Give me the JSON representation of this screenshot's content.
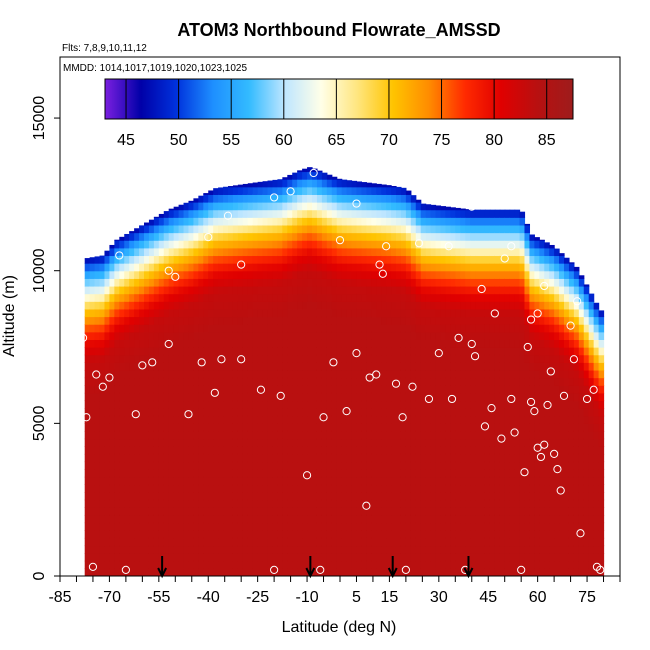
{
  "chart_data": {
    "type": "heatmap",
    "title": "ATOM3 Northbound Flowrate_AMSSD",
    "flights_label": "Flts: 7,8,9,10,11,12",
    "mmdd_label": "MMDD: 1014,1017,1019,1020,1023,1025",
    "xlabel": "Latitude (deg N)",
    "ylabel": "Altitude (m)",
    "xlim": [
      -85,
      85
    ],
    "ylim": [
      0,
      17000
    ],
    "x_ticks": [
      -85,
      -70,
      -55,
      -40,
      -25,
      -10,
      5,
      15,
      30,
      45,
      60,
      75
    ],
    "y_ticks": [
      0,
      5000,
      10000,
      15000
    ],
    "colorbar": {
      "range": [
        43,
        87.5
      ],
      "ticks": [
        45,
        50,
        55,
        60,
        65,
        70,
        75,
        80,
        85
      ],
      "colors": [
        "#7B1FE0",
        "#0000A8",
        "#0033DD",
        "#1E8FFF",
        "#33BBFF",
        "#BFE6FF",
        "#FFFFE8",
        "#FFE680",
        "#FFC400",
        "#FF8C00",
        "#FF2A00",
        "#E00000",
        "#B81010",
        "#9E1C1C"
      ]
    },
    "flight_markers_lat": [
      -54,
      -9,
      16,
      39
    ],
    "columns": [
      {
        "lat": -77.5,
        "top": 10400
      },
      {
        "lat": -72,
        "top": 10500
      },
      {
        "lat": -68,
        "top": 11000
      },
      {
        "lat": -60,
        "top": 11500
      },
      {
        "lat": -52,
        "top": 12000
      },
      {
        "lat": -45,
        "top": 12300
      },
      {
        "lat": -38,
        "top": 12700
      },
      {
        "lat": -25,
        "top": 12900
      },
      {
        "lat": -18,
        "top": 13000
      },
      {
        "lat": -12,
        "top": 13300
      },
      {
        "lat": -9,
        "top": 13400
      },
      {
        "lat": 0,
        "top": 13000
      },
      {
        "lat": 15,
        "top": 12800
      },
      {
        "lat": 20,
        "top": 12700
      },
      {
        "lat": 25,
        "top": 12200
      },
      {
        "lat": 40,
        "top": 12000
      },
      {
        "lat": 55,
        "top": 12000
      },
      {
        "lat": 58,
        "top": 11200
      },
      {
        "lat": 65,
        "top": 10800
      },
      {
        "lat": 72,
        "top": 10100
      },
      {
        "lat": 76,
        "top": 9300
      },
      {
        "lat": 79,
        "top": 8700
      }
    ],
    "top_gradient": [
      {
        "depth": 0,
        "value": 47
      },
      {
        "depth": 600,
        "value": 56
      },
      {
        "depth": 1200,
        "value": 63
      },
      {
        "depth": 1700,
        "value": 70
      },
      {
        "depth": 2200,
        "value": 75
      },
      {
        "depth": 2800,
        "value": 80
      },
      {
        "depth": 3400,
        "value": 83
      },
      {
        "depth": 4500,
        "value": 84
      }
    ],
    "body_value": 84,
    "points": [
      [
        -78,
        7800
      ],
      [
        -77,
        5200
      ],
      [
        -75,
        300
      ],
      [
        -74,
        6600
      ],
      [
        -72,
        6200
      ],
      [
        -70,
        6500
      ],
      [
        -65,
        200
      ],
      [
        -62,
        5300
      ],
      [
        -60,
        6900
      ],
      [
        -57,
        7000
      ],
      [
        -52,
        7600
      ],
      [
        -46,
        5300
      ],
      [
        -42,
        7000
      ],
      [
        -38,
        6000
      ],
      [
        -36,
        7100
      ],
      [
        -30,
        7100
      ],
      [
        -24,
        6100
      ],
      [
        -20,
        200
      ],
      [
        -18,
        5900
      ],
      [
        -10,
        3300
      ],
      [
        -6,
        200
      ],
      [
        -5,
        5200
      ],
      [
        -2,
        7000
      ],
      [
        2,
        5400
      ],
      [
        5,
        7300
      ],
      [
        9,
        6500
      ],
      [
        11,
        6600
      ],
      [
        13,
        9900
      ],
      [
        17,
        6300
      ],
      [
        19,
        5200
      ],
      [
        20,
        200
      ],
      [
        22,
        6200
      ],
      [
        27,
        5800
      ],
      [
        30,
        7300
      ],
      [
        34,
        5800
      ],
      [
        36,
        7800
      ],
      [
        38,
        200
      ],
      [
        40,
        7600
      ],
      [
        41,
        7200
      ],
      [
        44,
        4900
      ],
      [
        46,
        5500
      ],
      [
        47,
        8600
      ],
      [
        49,
        4500
      ],
      [
        52,
        5800
      ],
      [
        53,
        4700
      ],
      [
        55,
        200
      ],
      [
        56,
        3400
      ],
      [
        57,
        7500
      ],
      [
        58,
        5700
      ],
      [
        59,
        5400
      ],
      [
        60,
        4200
      ],
      [
        61,
        3900
      ],
      [
        62,
        4300
      ],
      [
        63,
        5600
      ],
      [
        64,
        6700
      ],
      [
        65,
        4000
      ],
      [
        66,
        3500
      ],
      [
        67,
        2800
      ],
      [
        68,
        5900
      ],
      [
        70,
        8200
      ],
      [
        71,
        7100
      ],
      [
        73,
        1400
      ],
      [
        75,
        5800
      ],
      [
        77,
        6100
      ],
      [
        78,
        300
      ],
      [
        79,
        200
      ],
      [
        8,
        2300
      ],
      [
        -67,
        10500
      ],
      [
        -50,
        9800
      ],
      [
        -52,
        10000
      ],
      [
        -40,
        11100
      ],
      [
        -30,
        10200
      ],
      [
        -20,
        12400
      ],
      [
        -15,
        12600
      ],
      [
        -8,
        13200
      ],
      [
        0,
        11000
      ],
      [
        5,
        12200
      ],
      [
        12,
        10200
      ],
      [
        14,
        10800
      ],
      [
        24,
        10900
      ],
      [
        33,
        10800
      ],
      [
        40,
        12100
      ],
      [
        43,
        9400
      ],
      [
        50,
        10400
      ],
      [
        52,
        10800
      ],
      [
        58,
        8400
      ],
      [
        60,
        8600
      ],
      [
        62,
        9500
      ],
      [
        72,
        9000
      ],
      [
        22,
        12900
      ],
      [
        -34,
        11800
      ]
    ]
  }
}
